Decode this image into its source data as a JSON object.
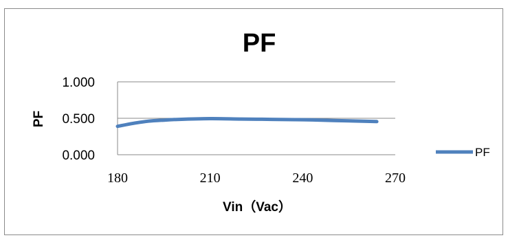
{
  "chart_data": {
    "type": "line",
    "title": "PF",
    "xlabel": "Vin（Vac）",
    "ylabel": "PF",
    "xlim": [
      180,
      270
    ],
    "ylim": [
      0,
      1
    ],
    "x_ticks": [
      "180",
      "210",
      "240",
      "270"
    ],
    "y_ticks": [
      "0.000",
      "0.500",
      "1.000"
    ],
    "grid": "horizontal",
    "legend": "right",
    "series": [
      {
        "name": "PF",
        "color": "#4f81bd",
        "x": [
          180,
          185,
          190,
          195,
          200,
          210,
          220,
          230,
          240,
          250,
          264
        ],
        "y": [
          0.39,
          0.43,
          0.46,
          0.475,
          0.485,
          0.495,
          0.49,
          0.485,
          0.48,
          0.47,
          0.455
        ]
      }
    ]
  }
}
